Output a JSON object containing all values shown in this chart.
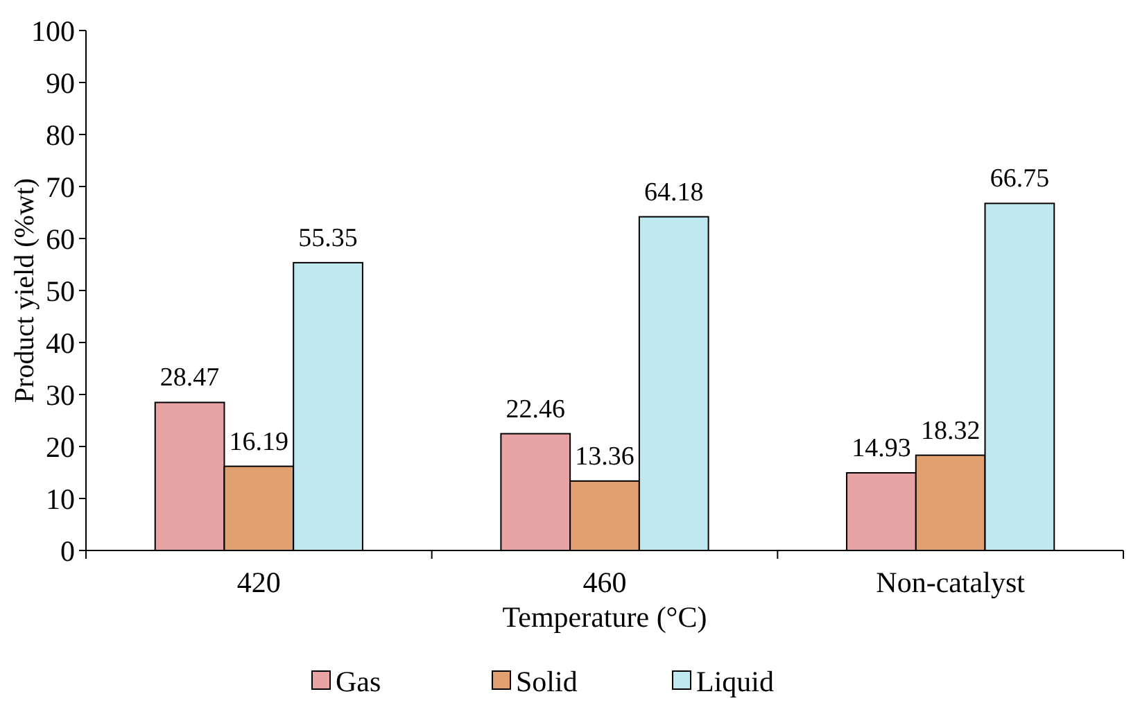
{
  "chart_data": {
    "type": "bar",
    "xlabel": "Temperature  (°C)",
    "ylabel": "Product yield (%wt)",
    "categories": [
      "420",
      "460",
      "Non-catalyst"
    ],
    "series": [
      {
        "name": "Gas",
        "color": "#e8a4a4",
        "values": [
          28.47,
          22.46,
          14.93
        ]
      },
      {
        "name": "Solid",
        "color": "#e0a070",
        "values": [
          16.19,
          13.36,
          18.32
        ]
      },
      {
        "name": "Liquid",
        "color": "#bfe8ef",
        "values": [
          55.35,
          64.18,
          66.75
        ]
      }
    ],
    "ylim": [
      0,
      100
    ],
    "yticks": [
      0,
      10,
      20,
      30,
      40,
      50,
      60,
      70,
      80,
      90,
      100
    ],
    "grid": false,
    "legend": "bottom",
    "data_labels": true
  }
}
